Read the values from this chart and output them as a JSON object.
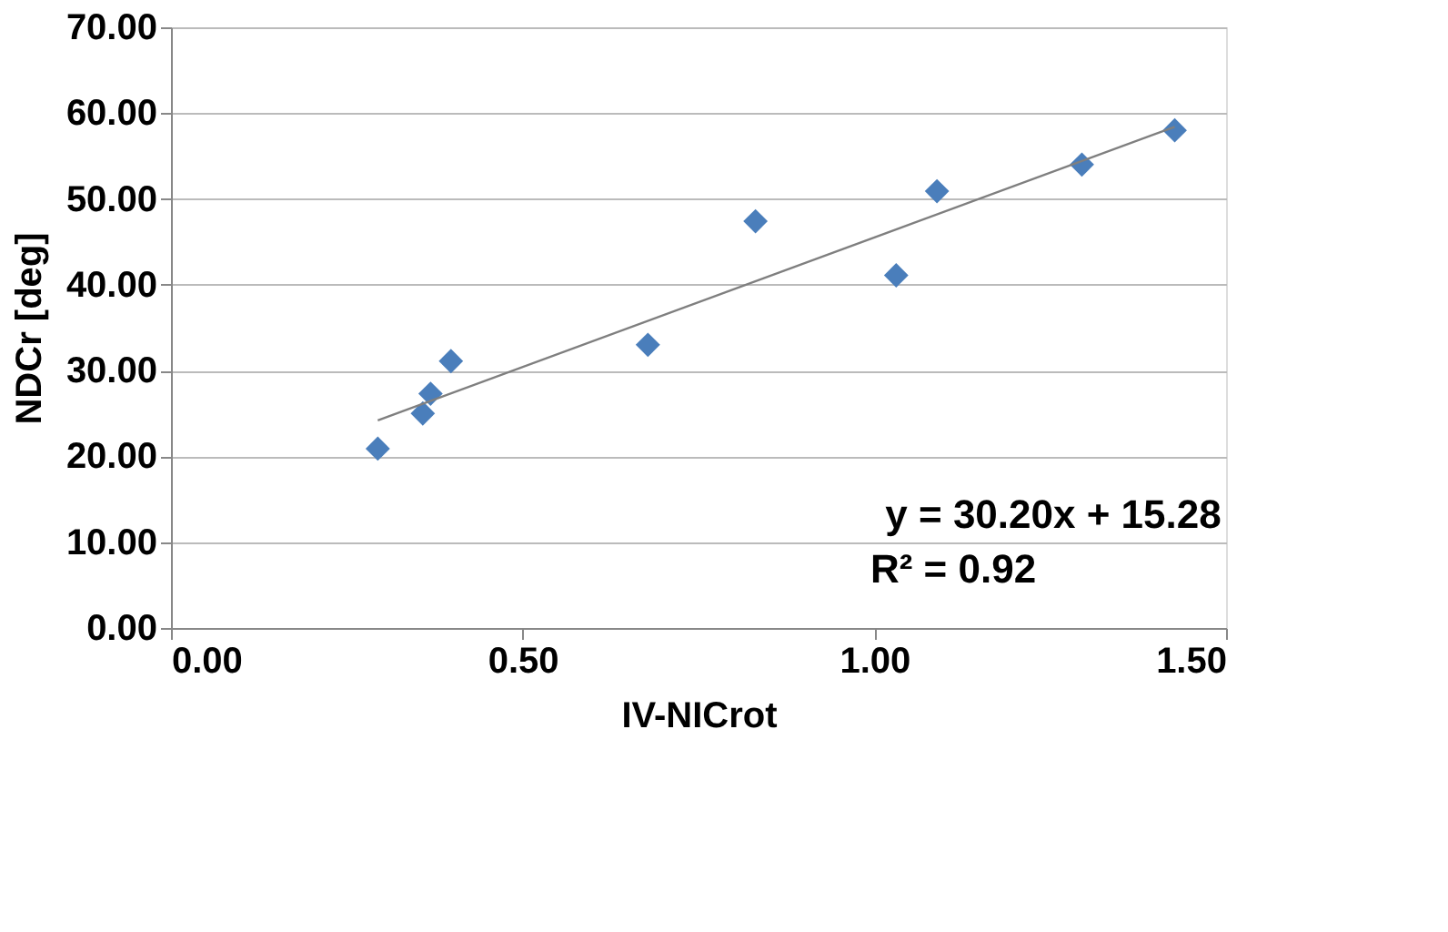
{
  "chart_data": {
    "type": "scatter",
    "xlabel": "IV-NICrot",
    "ylabel": "NDCr [deg]",
    "series": [
      {
        "color": "#4a7ebb",
        "marker": "diamond",
        "x": [
          0.294,
          0.358,
          0.369,
          0.398,
          0.678,
          0.831,
          1.031,
          1.089,
          1.295,
          1.427
        ],
        "values": [
          20.9,
          25.0,
          27.3,
          31.1,
          33.0,
          47.4,
          41.1,
          50.9,
          54.0,
          58.0
        ]
      },
      {
        "type": "line",
        "color": "#7f7f7f",
        "x": [
          0.294,
          1.427
        ],
        "values": [
          24.2,
          58.4
        ]
      }
    ],
    "xlim": [
      0,
      1.5
    ],
    "ylim": [
      0,
      70
    ],
    "xticks": [
      {
        "value": 0,
        "label": "0.00"
      },
      {
        "value": 0.5,
        "label": "0.50"
      },
      {
        "value": 1,
        "label": "1.00"
      },
      {
        "value": 1.5,
        "label": "1.50"
      }
    ],
    "yticks": [
      {
        "value": 0,
        "label": "0.00"
      },
      {
        "value": 10,
        "label": "10.00"
      },
      {
        "value": 20,
        "label": "20.00"
      },
      {
        "value": 30,
        "label": "30.00"
      },
      {
        "value": 40,
        "label": "40.00"
      },
      {
        "value": 50,
        "label": "50.00"
      },
      {
        "value": 60,
        "label": "60.00"
      },
      {
        "value": 70,
        "label": "70.00"
      }
    ],
    "grid": "y",
    "annotations": [
      "y = 30.20x + 15.28",
      "R² = 0.92"
    ]
  }
}
